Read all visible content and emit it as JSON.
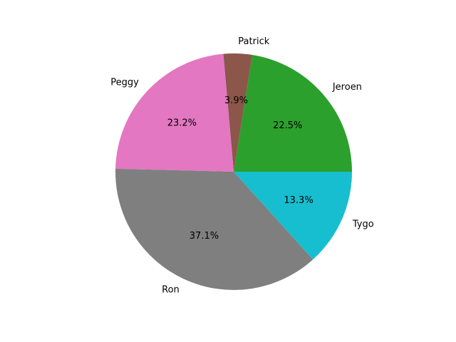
{
  "chart_data": {
    "type": "pie",
    "categories": [
      "Jeroen",
      "Patrick",
      "Peggy",
      "Ron",
      "Tygo"
    ],
    "values": [
      22.5,
      3.9,
      23.2,
      37.1,
      13.3
    ],
    "value_labels": [
      "22.5%",
      "3.9%",
      "23.2%",
      "37.1%",
      "13.3%"
    ],
    "colors": [
      "#2ca02c",
      "#8c564b",
      "#e377c2",
      "#7f7f7f",
      "#17becf"
    ],
    "start_angle_deg": 0,
    "direction": "counterclockwise",
    "title": "",
    "legend": "none"
  }
}
